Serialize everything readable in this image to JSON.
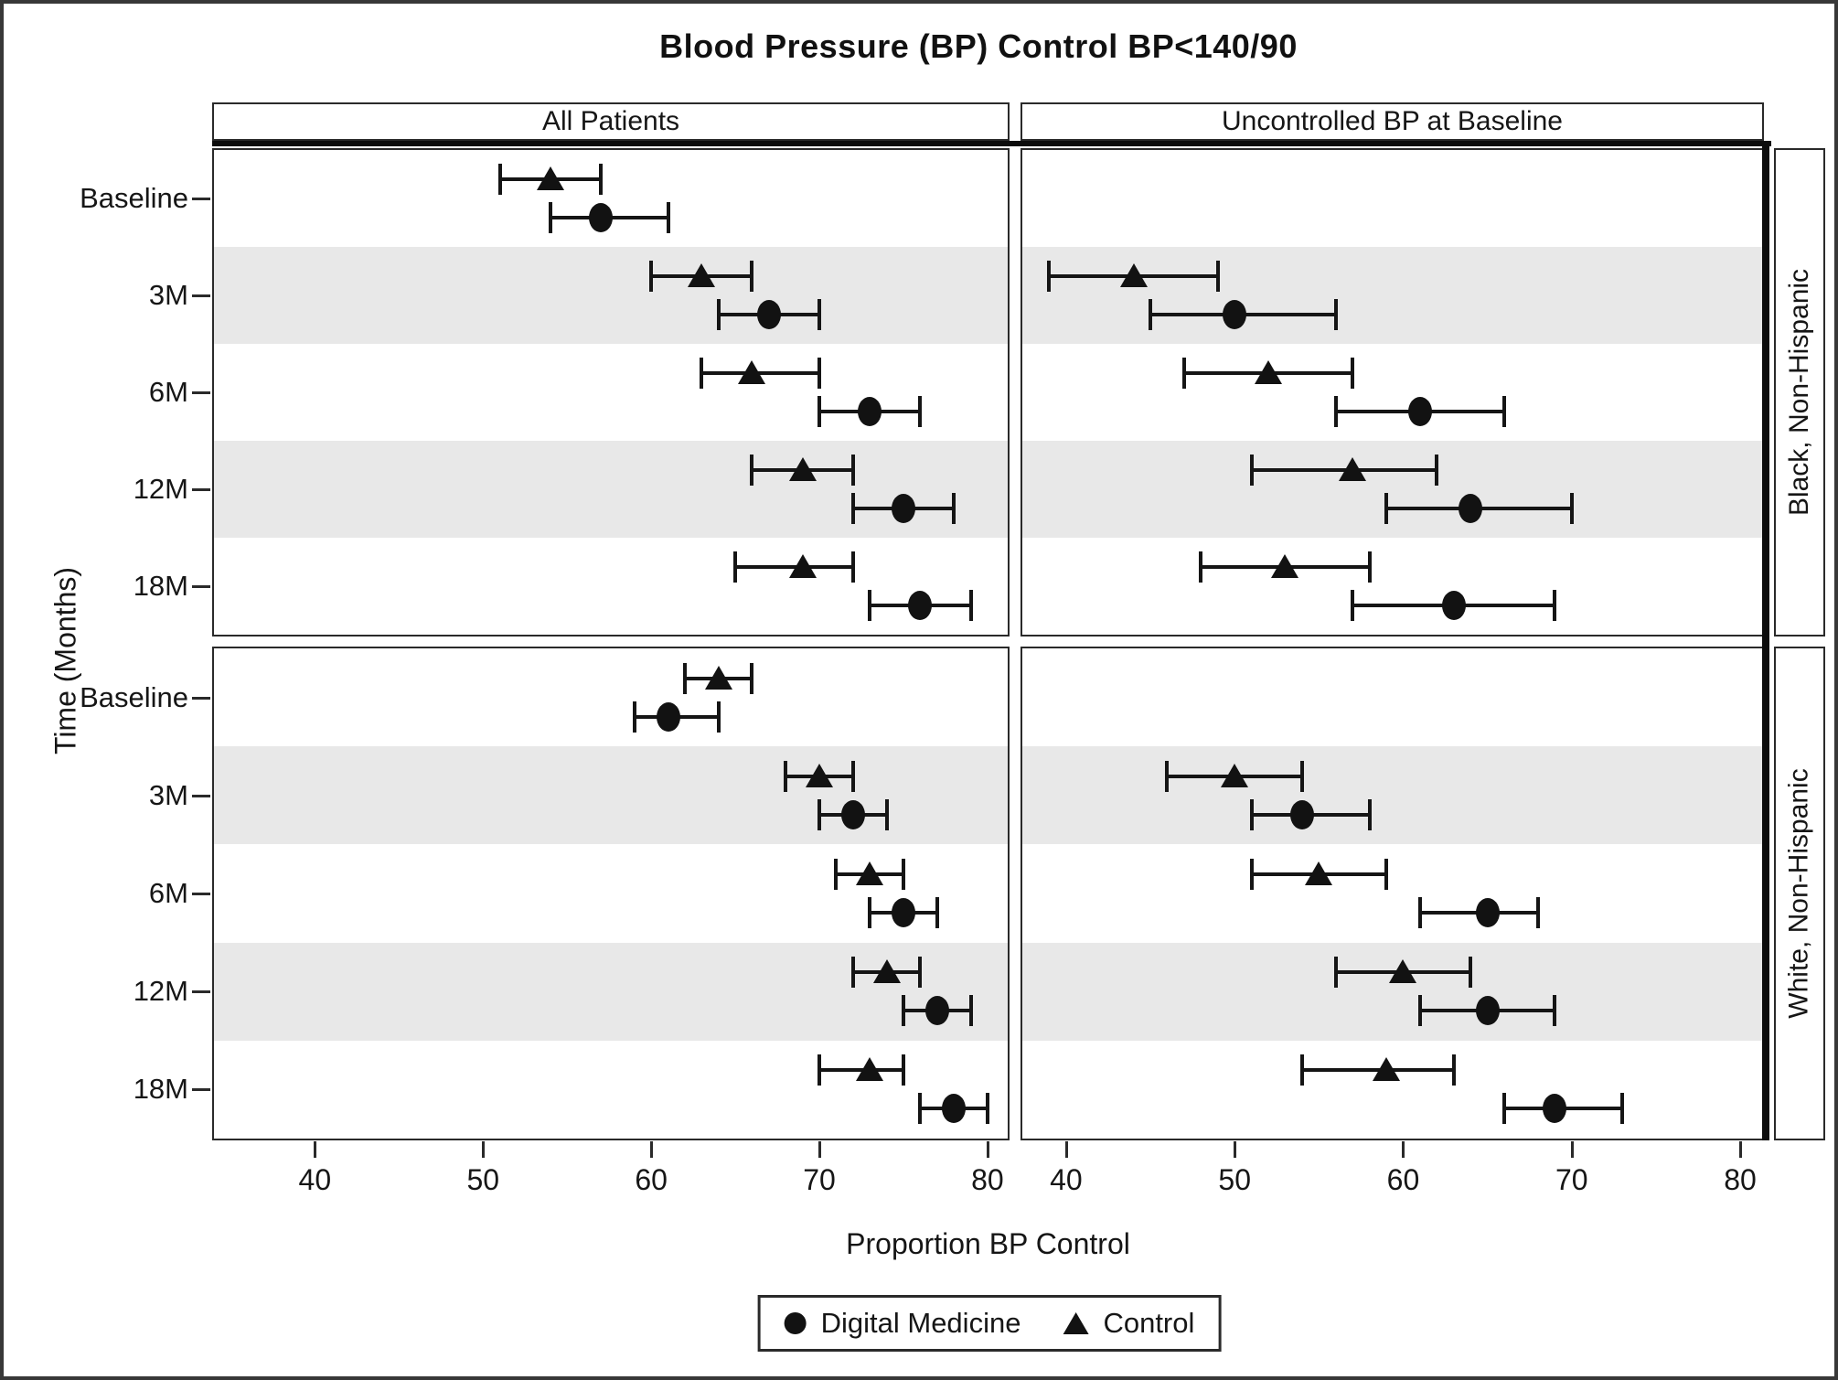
{
  "chart_data": {
    "type": "scatter",
    "subtype": "dot-interval (clustered point estimates with error bars, paneled)",
    "title": "Blood Pressure (BP) Control  BP<140/90",
    "xlabel": "Proportion BP Control",
    "ylabel": "Time (Months)",
    "x_ticks": [
      40,
      50,
      60,
      70,
      80
    ],
    "time_labels": [
      "Baseline",
      "3M",
      "6M",
      "12M",
      "18M"
    ],
    "col_headers": [
      "All Patients",
      "Uncontrolled BP at Baseline"
    ],
    "row_headers": [
      "Black, Non-Hispanic",
      "White, Non-Hispanic"
    ],
    "legend": {
      "digital_label": "Digital Medicine",
      "control_label": "Control"
    },
    "shaded_band_rows": [
      "3M",
      "12M"
    ],
    "colors": {
      "ink": "#151515",
      "band": "#e8e8e8",
      "background": "#ffffff"
    },
    "panels": [
      {
        "row": "Black, Non-Hispanic",
        "col": "All Patients",
        "xlim": [
          34,
          81.2
        ],
        "groups": [
          {
            "time": "Baseline",
            "control": {
              "est": 54,
              "lo": 51,
              "hi": 57
            },
            "digital": {
              "est": 57,
              "lo": 54,
              "hi": 61
            }
          },
          {
            "time": "3M",
            "control": {
              "est": 63,
              "lo": 60,
              "hi": 66
            },
            "digital": {
              "est": 67,
              "lo": 64,
              "hi": 70
            }
          },
          {
            "time": "6M",
            "control": {
              "est": 66,
              "lo": 63,
              "hi": 70
            },
            "digital": {
              "est": 73,
              "lo": 70,
              "hi": 76
            }
          },
          {
            "time": "12M",
            "control": {
              "est": 69,
              "lo": 66,
              "hi": 72
            },
            "digital": {
              "est": 75,
              "lo": 72,
              "hi": 78
            }
          },
          {
            "time": "18M",
            "control": {
              "est": 69,
              "lo": 65,
              "hi": 72
            },
            "digital": {
              "est": 76,
              "lo": 73,
              "hi": 79
            }
          }
        ]
      },
      {
        "row": "Black, Non-Hispanic",
        "col": "Uncontrolled BP at Baseline",
        "xlim": [
          37.4,
          81.3
        ],
        "groups": [
          {
            "time": "Baseline",
            "control": null,
            "digital": null
          },
          {
            "time": "3M",
            "control": {
              "est": 44,
              "lo": 39,
              "hi": 49
            },
            "digital": {
              "est": 50,
              "lo": 45,
              "hi": 56
            }
          },
          {
            "time": "6M",
            "control": {
              "est": 52,
              "lo": 47,
              "hi": 57
            },
            "digital": {
              "est": 61,
              "lo": 56,
              "hi": 66
            }
          },
          {
            "time": "12M",
            "control": {
              "est": 57,
              "lo": 51,
              "hi": 62
            },
            "digital": {
              "est": 64,
              "lo": 59,
              "hi": 70
            }
          },
          {
            "time": "18M",
            "control": {
              "est": 53,
              "lo": 48,
              "hi": 58
            },
            "digital": {
              "est": 63,
              "lo": 57,
              "hi": 69
            }
          }
        ]
      },
      {
        "row": "White, Non-Hispanic",
        "col": "All Patients",
        "xlim": [
          34,
          81.2
        ],
        "groups": [
          {
            "time": "Baseline",
            "control": {
              "est": 64,
              "lo": 62,
              "hi": 66
            },
            "digital": {
              "est": 61,
              "lo": 59,
              "hi": 64
            }
          },
          {
            "time": "3M",
            "control": {
              "est": 70,
              "lo": 68,
              "hi": 72
            },
            "digital": {
              "est": 72,
              "lo": 70,
              "hi": 74
            }
          },
          {
            "time": "6M",
            "control": {
              "est": 73,
              "lo": 71,
              "hi": 75
            },
            "digital": {
              "est": 75,
              "lo": 73,
              "hi": 77
            }
          },
          {
            "time": "12M",
            "control": {
              "est": 74,
              "lo": 72,
              "hi": 76
            },
            "digital": {
              "est": 77,
              "lo": 75,
              "hi": 79
            }
          },
          {
            "time": "18M",
            "control": {
              "est": 73,
              "lo": 70,
              "hi": 75
            },
            "digital": {
              "est": 78,
              "lo": 76,
              "hi": 80
            }
          }
        ]
      },
      {
        "row": "White, Non-Hispanic",
        "col": "Uncontrolled BP at Baseline",
        "xlim": [
          37.4,
          81.3
        ],
        "groups": [
          {
            "time": "Baseline",
            "control": null,
            "digital": null
          },
          {
            "time": "3M",
            "control": {
              "est": 50,
              "lo": 46,
              "hi": 54
            },
            "digital": {
              "est": 54,
              "lo": 51,
              "hi": 58
            }
          },
          {
            "time": "6M",
            "control": {
              "est": 55,
              "lo": 51,
              "hi": 59
            },
            "digital": {
              "est": 65,
              "lo": 61,
              "hi": 68
            }
          },
          {
            "time": "12M",
            "control": {
              "est": 60,
              "lo": 56,
              "hi": 64
            },
            "digital": {
              "est": 65,
              "lo": 61,
              "hi": 69
            }
          },
          {
            "time": "18M",
            "control": {
              "est": 59,
              "lo": 54,
              "hi": 63
            },
            "digital": {
              "est": 69,
              "lo": 66,
              "hi": 73
            }
          }
        ]
      }
    ]
  }
}
